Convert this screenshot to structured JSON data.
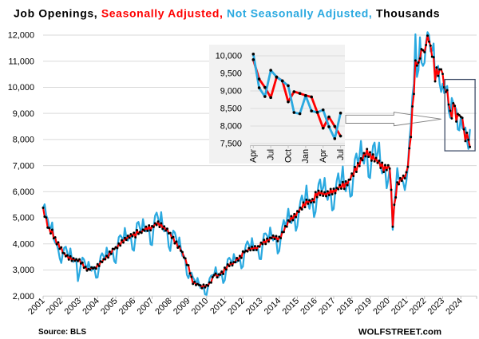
{
  "title": {
    "part1": "Job Openings, ",
    "part2": "Seasonally Adjusted, ",
    "part3": "",
    "part4": "Not Seasonally Adjusted, ",
    "part5": "Thousands"
  },
  "footer": {
    "source": "Source: BLS",
    "site": "WOLFSTREET.com"
  },
  "colors": {
    "sa_line": "#fe0000",
    "nsa_line": "#2aa9e0",
    "marker": "#000000",
    "grid": "#d9d9d9",
    "axis": "#bfbfbf",
    "inset_bg": "#f2f2f2",
    "inset_grid": "#dcdcdc",
    "highlight_rect": "#3f4d68",
    "arrow_stroke": "#7f7f7f",
    "arrow_fill": "#ffffff",
    "title_sa": "#fe0000",
    "title_nsa": "#2aa9e0"
  },
  "chart_data": {
    "type": "line",
    "title": "Job Openings, Seasonally Adjusted, Not Seasonally Adjusted, Thousands",
    "xlabel": "",
    "ylabel": "Thousands",
    "x_start_month": "2001-01",
    "x_end_month": "2024-07",
    "x_tick_years": [
      2001,
      2002,
      2003,
      2004,
      2005,
      2006,
      2007,
      2008,
      2009,
      2010,
      2011,
      2012,
      2013,
      2014,
      2015,
      2016,
      2017,
      2018,
      2019,
      2020,
      2021,
      2022,
      2023,
      2024
    ],
    "ylim": [
      2000,
      12000
    ],
    "y_tick_step": 1000,
    "y_tick_labels": [
      "2,000",
      "3,000",
      "4,000",
      "5,000",
      "6,000",
      "7,000",
      "8,000",
      "9,000",
      "10,000",
      "11,000",
      "12,000"
    ],
    "grid": true,
    "legend_position": "in-title",
    "series": [
      {
        "name": "Not Seasonally Adjusted",
        "markers": false,
        "values": [
          5373,
          5516,
          5110,
          4950,
          4647,
          4588,
          4820,
          4183,
          4045,
          3987,
          3771,
          3446,
          3268,
          3632,
          3855,
          3893,
          3663,
          3427,
          3826,
          3426,
          3310,
          3433,
          3327,
          2575,
          2877,
          3241,
          3475,
          3402,
          3203,
          3004,
          3314,
          3074,
          2971,
          3117,
          3016,
          2703,
          2717,
          3132,
          3523,
          3641,
          3521,
          3431,
          3856,
          3551,
          3558,
          3698,
          3709,
          3342,
          3264,
          3836,
          4256,
          4332,
          4248,
          4080,
          4610,
          4242,
          4126,
          4322,
          4263,
          3791,
          3738,
          4231,
          4791,
          4843,
          4596,
          4448,
          4947,
          4596,
          4475,
          4605,
          4570,
          3981,
          3953,
          4643,
          5082,
          5198,
          4982,
          4679,
          5217,
          4673,
          4477,
          4600,
          4469,
          3891,
          3731,
          4205,
          4507,
          4438,
          4212,
          3880,
          4247,
          3819,
          3539,
          3558,
          3354,
          2818,
          2688,
          2871,
          2897,
          2714,
          2622,
          2439,
          2693,
          2479,
          2311,
          2355,
          2378,
          2064,
          2045,
          2384,
          2672,
          2782,
          2805,
          2813,
          3107,
          2781,
          2724,
          2885,
          2861,
          2502,
          2606,
          3011,
          3406,
          3467,
          3372,
          3202,
          3611,
          3373,
          3305,
          3432,
          3446,
          3063,
          3131,
          3660,
          3956,
          4100,
          3952,
          3776,
          4222,
          3847,
          3763,
          3857,
          3801,
          3423,
          3417,
          3986,
          4392,
          4402,
          4311,
          4119,
          4628,
          4300,
          4133,
          4280,
          4185,
          3631,
          3728,
          4220,
          4645,
          4914,
          4682,
          4900,
          5347,
          4878,
          4794,
          5005,
          5027,
          4500,
          4695,
          5241,
          5631,
          5853,
          5567,
          5699,
          6236,
          5575,
          5347,
          5666,
          5610,
          5031,
          5229,
          5792,
          6298,
          6471,
          6017,
          6142,
          6526,
          5867,
          5685,
          5975,
          5962,
          5283,
          5344,
          5967,
          6417,
          6703,
          6238,
          6438,
          6970,
          6154,
          6020,
          6352,
          6332,
          5809,
          5854,
          6598,
          7248,
          7463,
          7099,
          7343,
          7942,
          7255,
          7074,
          7482,
          7462,
          6571,
          6521,
          7222,
          7755,
          7882,
          7271,
          7474,
          7883,
          6965,
          6701,
          6861,
          6873,
          6132,
          6437,
          6880,
          6061,
          4539,
          5497,
          6082,
          6906,
          6481,
          6463,
          6493,
          6335,
          6064,
          6403,
          6974,
          7964,
          8575,
          9660,
          10149,
          12031,
          10397,
          10654,
          11915,
          10954,
          10823,
          10942,
          11723,
          12113,
          11992,
          11375,
          11398,
          11678,
          10285,
          10505,
          10822,
          10138,
          9824,
          10140,
          9778,
          9970,
          10050,
          9090,
          8840,
          9590,
          9400,
          9280,
          9150,
          8385,
          8350,
          8865,
          8430,
          8390,
          8460,
          7980,
          7640,
          8370
        ]
      },
      {
        "name": "Seasonally Adjusted",
        "markers": true,
        "values": [
          5384,
          5044,
          5012,
          4624,
          4610,
          4401,
          4543,
          4217,
          4252,
          3986,
          4061,
          3812,
          3870,
          3655,
          3640,
          3527,
          3561,
          3402,
          3525,
          3351,
          3450,
          3356,
          3414,
          3343,
          3411,
          3248,
          3284,
          3086,
          3121,
          2978,
          3038,
          3010,
          3102,
          3058,
          3097,
          3054,
          3222,
          3152,
          3329,
          3305,
          3417,
          3409,
          3545,
          3476,
          3703,
          3618,
          3811,
          3803,
          3871,
          3842,
          4015,
          3937,
          4141,
          4052,
          4233,
          4155,
          4310,
          4232,
          4373,
          4292,
          4426,
          4252,
          4530,
          4385,
          4462,
          4425,
          4547,
          4504,
          4660,
          4502,
          4709,
          4520,
          4683,
          4649,
          4790,
          4726,
          4858,
          4648,
          4789,
          4574,
          4672,
          4510,
          4581,
          4404,
          4418,
          4228,
          4264,
          4020,
          4090,
          3855,
          3906,
          3738,
          3688,
          3480,
          3445,
          3196,
          3182,
          2870,
          2736,
          2468,
          2548,
          2424,
          2468,
          2424,
          2411,
          2305,
          2440,
          2335,
          2423,
          2395,
          2525,
          2518,
          2724,
          2801,
          2864,
          2718,
          2834,
          2819,
          2936,
          2848,
          3090,
          3018,
          3216,
          3152,
          3279,
          3176,
          3304,
          3298,
          3460,
          3362,
          3541,
          3466,
          3711,
          3681,
          3741,
          3713,
          3840,
          3755,
          3891,
          3761,
          3915,
          3767,
          3911,
          3894,
          4048,
          3993,
          4153,
          3998,
          4203,
          4089,
          4240,
          4217,
          4318,
          4190,
          4300,
          4105,
          4273,
          4221,
          4452,
          4456,
          4682,
          4661,
          4899,
          4850,
          5066,
          4911,
          5146,
          5026,
          5256,
          5226,
          5389,
          5322,
          5586,
          5408,
          5696,
          5539,
          5675,
          5588,
          5719,
          5600,
          5985,
          5793,
          6040,
          5869,
          6015,
          5843,
          5980,
          5829,
          6017,
          5871,
          6105,
          5902,
          6114,
          5945,
          6145,
          6094,
          6254,
          6118,
          6369,
          6110,
          6397,
          6251,
          6458,
          6468,
          6697,
          6602,
          6951,
          6759,
          7098,
          6983,
          7279,
          7207,
          7478,
          7357,
          7636,
          7337,
          7513,
          7191,
          7428,
          7165,
          7291,
          7104,
          7189,
          6911,
          7114,
          6754,
          7019,
          6829,
          7012,
          6888,
          6072,
          4658,
          5499,
          5782,
          6361,
          6287,
          6521,
          6419,
          6614,
          6516,
          6745,
          6955,
          7663,
          8098,
          9268,
          9745,
          11029,
          10830,
          10950,
          11105,
          11465,
          11420,
          11347,
          11622,
          11981,
          11747,
          11597,
          11173,
          11156,
          10229,
          10762,
          10437,
          10688,
          10690,
          10513,
          10003,
          9821,
          9890,
          9340,
          9100,
          8810,
          9390,
          9290,
          8690,
          8980,
          8930,
          8870,
          8830,
          8390,
          7940,
          8260,
          7990,
          7715
        ]
      }
    ],
    "inset": {
      "x_start_month": "2023-04",
      "x_tick_labels": [
        "Apr",
        "Jul",
        "Oct",
        "Jan",
        "Apr",
        "Jul"
      ],
      "ylim": [
        7500,
        10000
      ],
      "y_tick_step": 500,
      "y_tick_labels": [
        "7,500",
        "8,000",
        "8,500",
        "9,000",
        "9,500",
        "10,000"
      ],
      "series": [
        {
          "name": "Seasonally Adjusted",
          "markers": true,
          "values": [
            9890,
            9340,
            9100,
            8810,
            9390,
            9290,
            8690,
            8980,
            8930,
            8870,
            8830,
            8390,
            7940,
            8260,
            7990,
            7715
          ]
        },
        {
          "name": "Not Seasonally Adjusted",
          "markers": true,
          "values": [
            10050,
            9090,
            8840,
            9590,
            9400,
            9280,
            9150,
            8385,
            8350,
            8865,
            8430,
            8390,
            8460,
            7980,
            7640,
            8370
          ]
        }
      ]
    }
  }
}
